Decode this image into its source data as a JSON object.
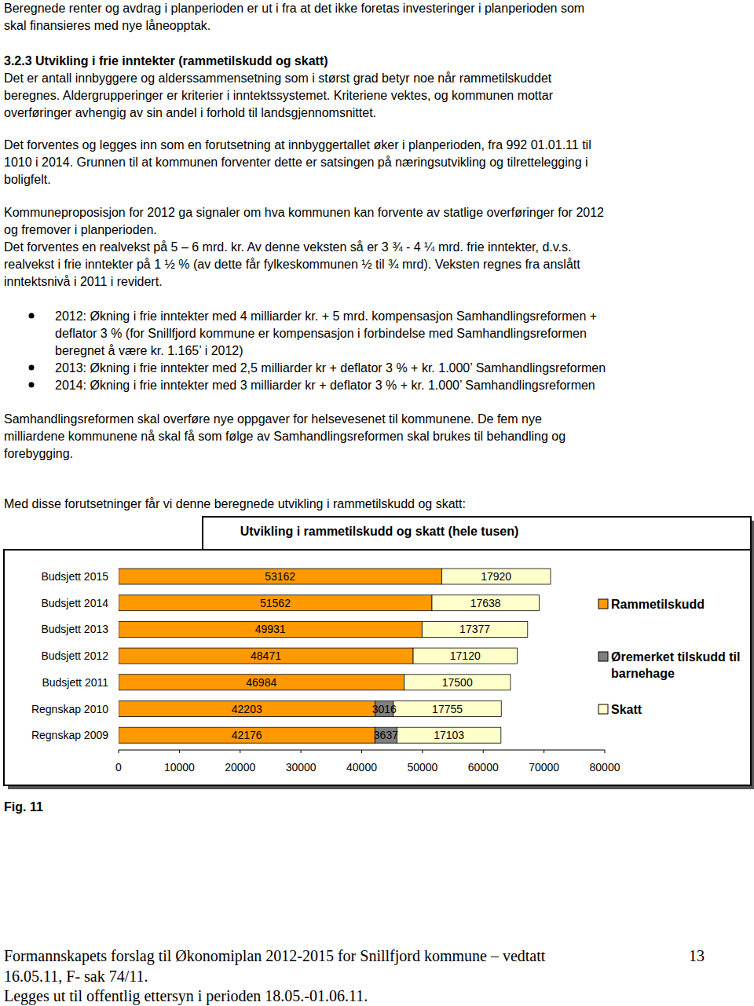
{
  "document": {
    "blocks": [
      {
        "kind": "text",
        "lines": [
          "Beregnede renter og avdrag i planperioden er ut i fra at det ikke foretas investeringer i planperioden som",
          "skal finansieres med nye låneopptak."
        ]
      },
      {
        "kind": "heading",
        "lines": [
          "3.2.3 Utvikling i frie inntekter (rammetilskudd og skatt)"
        ]
      },
      {
        "kind": "text",
        "lines": [
          "Det er antall innbyggere og alderssammensetning som i størst grad betyr noe når rammetilskuddet",
          "beregnes. Aldergrupperinger er kriterier i inntektssystemet. Kriteriene vektes, og kommunen mottar",
          "overføringer avhengig av sin andel i forhold til landsgjennomsnittet."
        ]
      },
      {
        "kind": "text",
        "lines": [
          "Det forventes og legges inn som en forutsetning at innbyggertallet øker i planperioden, fra 992 01.01.11 til",
          "1010 i 2014. Grunnen til at kommunen forventer dette er satsingen på næringsutvikling og tilrettelegging i",
          "boligfelt."
        ]
      },
      {
        "kind": "text",
        "lines": [
          "Kommuneproposisjon for 2012 ga signaler om hva kommunen kan forvente av statlige overføringer for 2012",
          "og fremover i planperioden.",
          "Det forventes en realvekst på 5 – 6 mrd. kr. Av denne veksten så er 3 ¾ - 4 ¼ mrd. frie inntekter, d.v.s.",
          "realvekst i frie inntekter på 1 ½ % (av dette får fylkeskommunen ½ til ¾ mrd). Veksten regnes fra anslått",
          "inntektsnivå i 2011 i revidert."
        ]
      },
      {
        "kind": "bullet",
        "lines": [
          "2012: Økning i frie inntekter med 4 milliarder kr. + 5 mrd. kompensasjon Samhandlingsreformen +",
          "deflator 3 % (for Snillfjord kommune er kompensasjon i forbindelse med Samhandlingsreformen",
          "beregnet å være kr. 1.165’ i 2012)"
        ]
      },
      {
        "kind": "bullet",
        "lines": [
          "2013: Økning i frie inntekter med 2,5 milliarder kr + deflator 3 % + kr. 1.000’ Samhandlingsreformen"
        ]
      },
      {
        "kind": "bullet",
        "lines": [
          "2014: Økning i frie inntekter med 3 milliarder kr + deflator 3 % + kr. 1.000’ Samhandlingsreformen"
        ]
      },
      {
        "kind": "text",
        "lines": [
          "Samhandlingsreformen skal overføre nye oppgaver for helsevesenet til kommunene. De fem nye",
          "milliardene kommunene nå skal få som følge av Samhandlingsreformen skal brukes til behandling og",
          "forebygging."
        ]
      },
      {
        "kind": "text",
        "lines": [
          "Med disse forutsetninger får vi denne beregnede utvikling i rammetilskudd og skatt:"
        ]
      }
    ],
    "figure_caption": "Fig. 11",
    "footer": {
      "lines": [
        "Formannskapets forslag til Økonomiplan 2012-2015 for Snillfjord kommune – vedtatt",
        "16.05.11, F- sak 74/11.",
        "Legges ut til offentlig ettersyn i perioden 18.05.-01.06.11."
      ],
      "page_number": "13"
    }
  },
  "chart_data": {
    "type": "bar",
    "orientation": "horizontal",
    "stacked": true,
    "data_labels": true,
    "legend": "right",
    "title": "Utvikling i rammetilskudd og skatt (hele tusen)",
    "categories": [
      "Budsjett 2015",
      "Budsjett 2014",
      "Budsjett 2013",
      "Budsjett 2012",
      "Budsjett 2011",
      "Regnskap 2010",
      "Regnskap 2009"
    ],
    "series": [
      {
        "name": "Rammetilskudd",
        "color": "#ff9900",
        "values": [
          53162,
          51562,
          49931,
          48471,
          46984,
          42203,
          42176
        ]
      },
      {
        "name": "Øremerket tilskudd til barnehage",
        "color": "#7f7f7f",
        "values": [
          null,
          null,
          null,
          null,
          null,
          3016,
          3637
        ]
      },
      {
        "name": "Skatt",
        "color": "#ffffcc",
        "values": [
          17920,
          17638,
          17377,
          17120,
          17500,
          17755,
          17103
        ]
      }
    ],
    "xlim": [
      0,
      80000
    ],
    "xticks": [
      0,
      10000,
      20000,
      30000,
      40000,
      50000,
      60000,
      70000,
      80000
    ]
  }
}
